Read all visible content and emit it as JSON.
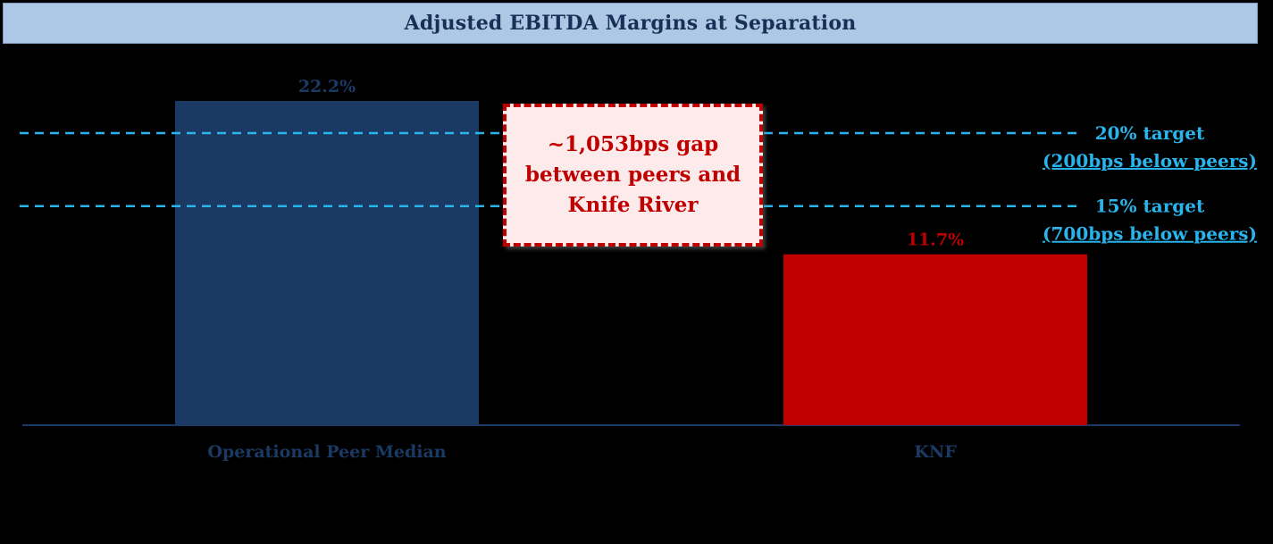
{
  "title": "Adjusted EBITDA Margins at Separation",
  "callout": {
    "text": "~1,053bps gap between peers and Knife River"
  },
  "targets": [
    {
      "label": "20% target",
      "sublabel": "(200bps below peers)",
      "value": 20
    },
    {
      "label": "15% target",
      "sublabel": "(700bps below peers)",
      "value": 15
    }
  ],
  "colors": {
    "peer_bar": "#1b3a63",
    "knf_bar": "#c00000",
    "target_line": "#29b4ec",
    "title_bg": "#adc8e5"
  },
  "chart_data": {
    "type": "bar",
    "categories": [
      "Operational Peer Median",
      "KNF"
    ],
    "values": [
      22.2,
      11.7
    ],
    "value_labels": [
      "22.2%",
      "11.7%"
    ],
    "bar_colors": [
      "#1b3a63",
      "#c00000"
    ],
    "title": "Adjusted EBITDA Margins at Separation",
    "xlabel": "",
    "ylabel": "",
    "ylim": [
      0,
      22.2
    ],
    "reference_lines": [
      20,
      15
    ],
    "grid": false
  }
}
